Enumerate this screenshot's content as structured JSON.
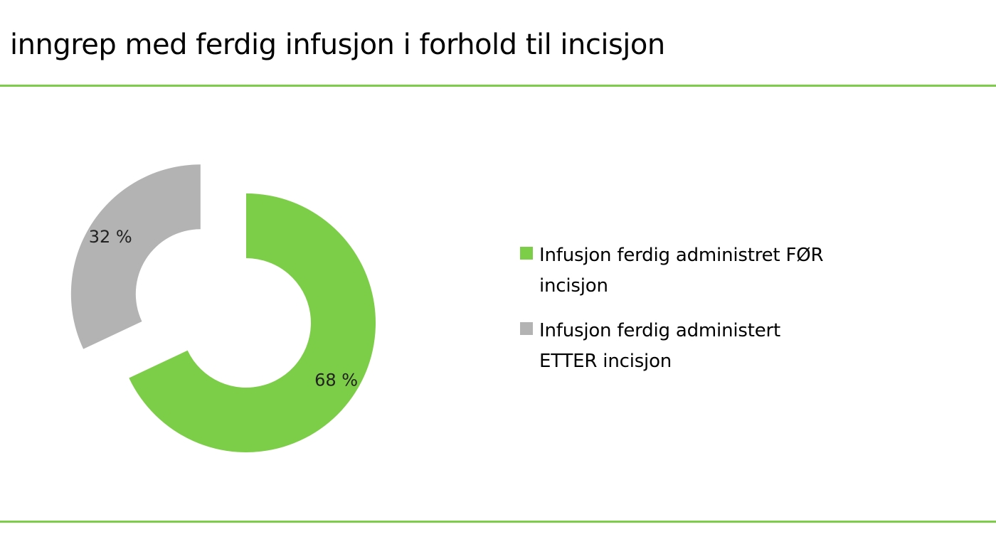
{
  "slide": {
    "title": "inngrep med ferdig infusjon i forhold til incisjon",
    "accent_color": "#7ccd47"
  },
  "chart_data": {
    "type": "pie",
    "variant": "donut",
    "exploded": true,
    "legend_position": "right",
    "slices": [
      {
        "name": "Infusjon ferdig administret FØR incisjon",
        "value": 68,
        "label": "68 %",
        "color": "#7ccd47"
      },
      {
        "name": "Infusjon ferdig administert ETTER incisjon",
        "value": 32,
        "label": "32 %",
        "color": "#b3b3b3"
      }
    ]
  }
}
